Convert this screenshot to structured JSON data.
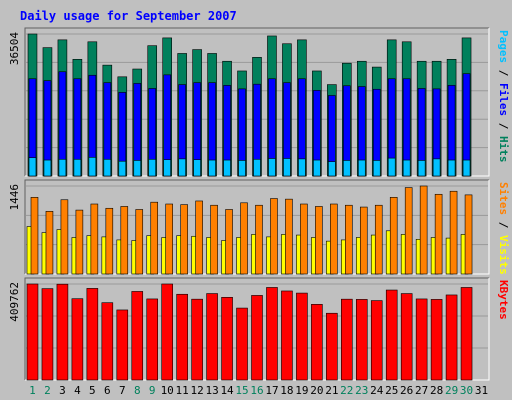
{
  "chart_data": {
    "type": "bar",
    "title": "Daily usage for September 2007",
    "categories": [
      "1",
      "2",
      "3",
      "4",
      "5",
      "6",
      "7",
      "8",
      "9",
      "10",
      "11",
      "12",
      "13",
      "14",
      "15",
      "16",
      "17",
      "18",
      "19",
      "20",
      "21",
      "22",
      "23",
      "24",
      "25",
      "26",
      "27",
      "28",
      "29",
      "30",
      "31"
    ],
    "weekend_days": [
      1,
      2,
      8,
      9,
      15,
      16,
      22,
      23,
      29,
      30
    ],
    "panels": [
      {
        "id": "hits",
        "ymax_label": "36504",
        "ymax": 36504,
        "axis_labels": [
          {
            "text": "Pages",
            "color": "#00c0ff"
          },
          {
            "text": " / ",
            "color": "#000000"
          },
          {
            "text": "Files",
            "color": "#0000ff"
          },
          {
            "text": " / ",
            "color": "#000000"
          },
          {
            "text": "Hits",
            "color": "#00805c"
          }
        ],
        "series": [
          {
            "name": "Hits",
            "color": "#00805c",
            "values": [
              36504,
              33000,
              35000,
              30000,
              34500,
              28500,
              25500,
              27500,
              33500,
              35500,
              31500,
              32500,
              31500,
              29500,
              27000,
              30500,
              36000,
              34000,
              35000,
              27000,
              23500,
              29000,
              29500,
              28000,
              35000,
              34500,
              29500,
              29500,
              30000,
              35500,
              0
            ]
          },
          {
            "name": "Files",
            "color": "#0000ff",
            "values": [
              25000,
              24500,
              26800,
              25000,
              25900,
              24000,
              21500,
              23800,
              22500,
              26000,
              23500,
              24000,
              24000,
              23300,
              22400,
              23600,
              25000,
              24000,
              25000,
              22000,
              20700,
              23200,
              23000,
              22300,
              25000,
              25000,
              22500,
              22400,
              23300,
              26300,
              0
            ]
          },
          {
            "name": "Pages",
            "color": "#00c0ff",
            "values": [
              4700,
              4100,
              4300,
              4300,
              4800,
              4300,
              3800,
              4000,
              4300,
              4200,
              4400,
              4200,
              4100,
              4100,
              4000,
              4300,
              4500,
              4500,
              4400,
              4100,
              3700,
              4000,
              4100,
              4000,
              4600,
              4100,
              4000,
              4400,
              4100,
              4100,
              0
            ]
          }
        ]
      },
      {
        "id": "sites",
        "ymax_label": "1446",
        "ymax": 1446,
        "axis_labels": [
          {
            "text": "Sites",
            "color": "#ff8000"
          },
          {
            "text": " / ",
            "color": "#000000"
          },
          {
            "text": "Visits",
            "color": "#ffff00"
          }
        ],
        "series": [
          {
            "name": "Visits",
            "color": "#ffff00",
            "values": [
              780,
              680,
              730,
              600,
              630,
              610,
              560,
              550,
              630,
              600,
              630,
              620,
              600,
              550,
              600,
              650,
              610,
              650,
              640,
              600,
              540,
              560,
              600,
              640,
              710,
              650,
              570,
              600,
              590,
              650,
              0
            ]
          },
          {
            "name": "Sites",
            "color": "#ff8000",
            "values": [
              1260,
              1030,
              1220,
              1050,
              1150,
              1080,
              1110,
              1060,
              1180,
              1150,
              1140,
              1200,
              1130,
              1060,
              1170,
              1130,
              1240,
              1230,
              1150,
              1110,
              1150,
              1130,
              1100,
              1130,
              1260,
              1420,
              1446,
              1310,
              1360,
              1300,
              0
            ]
          }
        ]
      },
      {
        "id": "kbytes",
        "ymax_label": "409762",
        "ymax": 409762,
        "axis_labels": [
          {
            "text": "KBytes",
            "color": "#ff0000"
          }
        ],
        "series": [
          {
            "name": "KBytes",
            "color": "#ff0000",
            "values": [
              409762,
              390000,
              409000,
              347000,
              391000,
              330000,
              299000,
              378000,
              346000,
              409762,
              366000,
              345000,
              369000,
              353000,
              307000,
              361000,
              395000,
              380000,
              371000,
              323000,
              285000,
              345000,
              344000,
              339000,
              384000,
              369000,
              346000,
              344000,
              363000,
              395000,
              0
            ]
          }
        ]
      }
    ]
  }
}
